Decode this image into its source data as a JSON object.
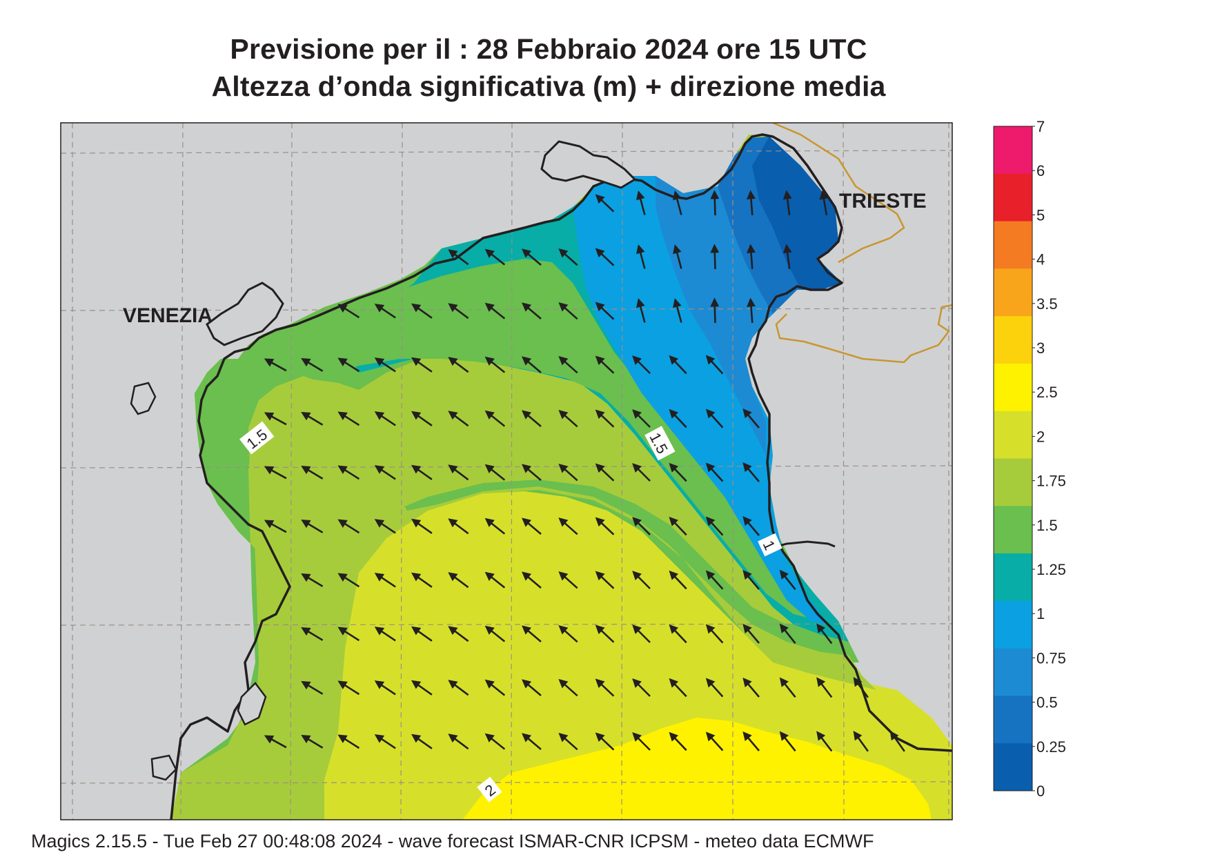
{
  "title": {
    "line1": "Previsione per il  :  28  Febbraio 2024   ore 15 UTC",
    "line2": "Altezza d’onda significativa (m) + direzione media"
  },
  "map": {
    "cities": [
      "VENEZIA",
      "TRIESTE"
    ],
    "contour_labels": [
      "1.5",
      "1.5",
      "1",
      "2"
    ]
  },
  "legend": {
    "ticks": [
      "7",
      "6",
      "5",
      "4",
      "3.5",
      "3",
      "2.5",
      "2",
      "1.75",
      "1.5",
      "1.25",
      "1",
      "0.75",
      "0.5",
      "0.25",
      "0"
    ],
    "colors": [
      "#ee1a6c",
      "#e8202a",
      "#f47b22",
      "#f9a51b",
      "#fcd20c",
      "#fef200",
      "#d6e02a",
      "#a7cc3b",
      "#6abf4e",
      "#07ada6",
      "#0ba0e2",
      "#1c8bd3",
      "#1673c2",
      "#0a5eae"
    ]
  },
  "footer": "Magics 2.15.5 - Tue Feb 27 00:48:08 2024 - wave forecast  ISMAR-CNR  ICPSM - meteo data    ECMWF"
}
